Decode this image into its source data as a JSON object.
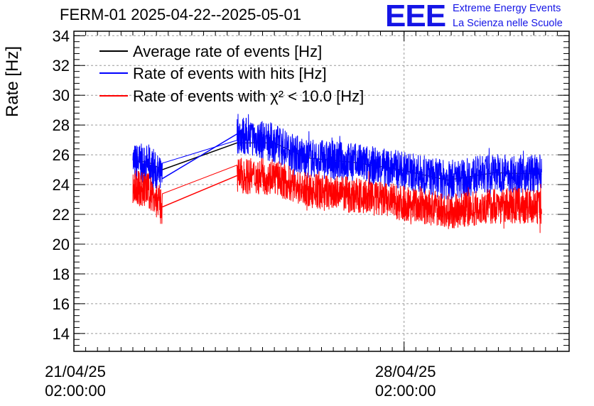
{
  "header": {
    "title": "FERM-01 2025-04-22--2025-05-01",
    "logo_text": "EEE",
    "logo_line1": "Extreme Energy Events",
    "logo_line2": "La Scienza nelle Scuole"
  },
  "colors": {
    "average": "#000000",
    "hits": "#0000ff",
    "chi2": "#ff0000",
    "logo": "#1515e6",
    "grid": "#9a9a9a"
  },
  "chart_data": {
    "type": "line",
    "title": "FERM-01 2025-04-22--2025-05-01",
    "ylabel": "Rate [Hz]",
    "xlabel": "",
    "ylim": [
      12.8,
      34.3
    ],
    "yticks": [
      14,
      16,
      18,
      20,
      22,
      24,
      26,
      28,
      30,
      32,
      34
    ],
    "ytick_labels": [
      "14",
      "16",
      "18",
      "20",
      "22",
      "24",
      "26",
      "28",
      "30",
      "32",
      "34"
    ],
    "xlim_days": [
      "2025-04-21 02:00",
      "2025-05-01 14:00"
    ],
    "xticks": [
      {
        "date": "2025-04-21 02:00",
        "line1": "21/04/25",
        "line2": "02:00:00"
      },
      {
        "date": "2025-04-28 02:00",
        "line1": "28/04/25",
        "line2": "02:00:00"
      }
    ],
    "grid": true,
    "legend_position": "top-left",
    "series": [
      {
        "name": "Average rate of events [Hz]",
        "x": [
          "2025-04-22 08:00",
          "2025-04-22 16:00",
          "2025-04-22 23:00",
          "2025-04-24 13:00",
          "2025-04-25 08:00",
          "2025-04-26 00:00",
          "2025-04-27 00:00",
          "2025-04-28 00:00",
          "2025-04-29 00:00",
          "2025-04-30 00:00",
          "2025-05-01 00:00"
        ],
        "y": [
          25.6,
          25.5,
          25.0,
          26.8,
          26.8,
          25.8,
          25.5,
          25.0,
          24.3,
          24.8,
          24.7
        ]
      },
      {
        "name": "Rate of events with hits [Hz]",
        "x": [
          "2025-04-22 08:00",
          "2025-04-22 16:00",
          "2025-04-22 23:00",
          "2025-04-24 13:00",
          "2025-04-25 08:00",
          "2025-04-26 00:00",
          "2025-04-27 00:00",
          "2025-04-28 00:00",
          "2025-04-29 00:00",
          "2025-04-30 00:00",
          "2025-05-01 00:00"
        ],
        "y": [
          25.5,
          25.4,
          24.4,
          27.4,
          26.8,
          25.8,
          25.5,
          25.0,
          24.3,
          24.8,
          24.7
        ]
      },
      {
        "name": "Rate of events with χ² < 10.0 [Hz]",
        "x": [
          "2025-04-22 08:00",
          "2025-04-22 16:00",
          "2025-04-22 23:00",
          "2025-04-24 13:00",
          "2025-04-25 08:00",
          "2025-04-26 00:00",
          "2025-04-27 00:00",
          "2025-04-28 00:00",
          "2025-04-29 00:00",
          "2025-04-30 00:00",
          "2025-05-01 00:00"
        ],
        "y": [
          23.8,
          23.6,
          22.5,
          24.6,
          24.5,
          23.6,
          23.3,
          22.8,
          22.2,
          22.6,
          22.5
        ]
      }
    ]
  }
}
